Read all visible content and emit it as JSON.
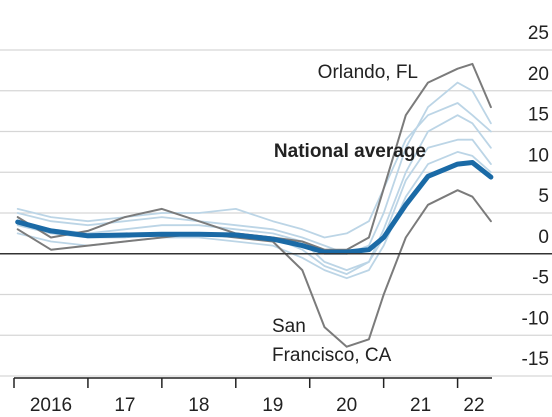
{
  "chart_data": {
    "type": "line",
    "annotations": [
      "Orlando, FL",
      "National average",
      "San",
      "Francisco, CA"
    ],
    "x": [
      2016.05,
      2016.5,
      2017,
      2017.5,
      2018,
      2018.5,
      2019,
      2019.5,
      2019.9,
      2020.2,
      2020.5,
      2020.8,
      2021.0,
      2021.3,
      2021.6,
      2022.0,
      2022.2,
      2022.45
    ],
    "series": [
      {
        "color": "#bcd5e6",
        "values": [
          5,
          4,
          3.5,
          4,
          4.5,
          4,
          3.5,
          3,
          2,
          1,
          0,
          1,
          5,
          13,
          18,
          21,
          20,
          16
        ]
      },
      {
        "color": "#bcd5e6",
        "values": [
          4,
          3,
          2.5,
          3,
          3.5,
          3.5,
          3,
          2.5,
          1.5,
          -1,
          -2,
          -1,
          3,
          10,
          15,
          17,
          16,
          13
        ]
      },
      {
        "color": "#bcd5e6",
        "values": [
          3.5,
          2.5,
          2,
          2,
          2.5,
          2.5,
          2.5,
          2,
          0.5,
          -1.5,
          -2.5,
          -1,
          2,
          9,
          13,
          14,
          14,
          11
        ]
      },
      {
        "color": "#bcd5e6",
        "values": [
          5.5,
          4.5,
          4,
          4.5,
          5,
          5,
          5.5,
          4,
          3,
          2,
          2.5,
          4,
          8,
          14,
          17,
          18.5,
          17,
          15
        ]
      },
      {
        "color": "#bcd5e6",
        "values": [
          2.5,
          1.5,
          1,
          1.5,
          2,
          2,
          1.5,
          1,
          -0.5,
          -2,
          -3,
          -2,
          1,
          7,
          11,
          12.5,
          12,
          10
        ]
      },
      {
        "name": "Orlando, FL",
        "color": "#7b7b7b",
        "values": [
          4.5,
          2,
          2.8,
          4.5,
          5.5,
          4,
          2.5,
          2,
          1.5,
          0.5,
          0.5,
          2,
          8,
          17,
          21,
          22.7,
          23.3,
          18
        ]
      },
      {
        "name": "San Francisco, CA",
        "color": "#7b7b7b",
        "values": [
          3,
          0.5,
          1,
          1.5,
          2,
          2.5,
          2,
          1.5,
          -2,
          -9,
          -11.4,
          -10.5,
          -5,
          2,
          6,
          7.8,
          7,
          4
        ]
      },
      {
        "name": "National average",
        "color": "#1a6aa6",
        "values": [
          3.9,
          2.8,
          2.2,
          2.3,
          2.4,
          2.4,
          2.3,
          1.8,
          1,
          0.2,
          0.2,
          0.5,
          2,
          6,
          9.5,
          11,
          11.2,
          9.4
        ]
      }
    ],
    "xlim": [
      2016,
      2023.25
    ],
    "xticks": [
      2016,
      {
        "value": 2017,
        "label": "17"
      },
      {
        "value": 2018,
        "label": "18"
      },
      {
        "value": 2019,
        "label": "19"
      },
      {
        "value": 2020,
        "label": "20"
      },
      {
        "value": 2021,
        "label": "21"
      },
      {
        "value": 2022,
        "label": "22"
      }
    ],
    "ylim": [
      -15,
      25
    ],
    "yticks": [
      -15,
      -10,
      -5,
      0,
      5,
      10,
      15,
      20,
      25
    ],
    "grid": true
  }
}
